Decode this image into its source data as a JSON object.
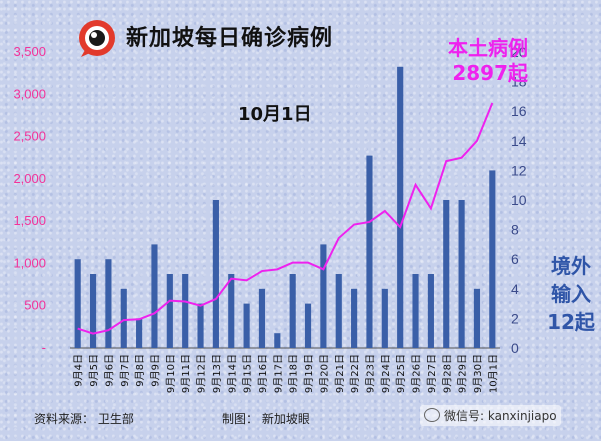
{
  "header": {
    "title": "新加坡每日确诊病例",
    "date": "10月1日"
  },
  "callouts": {
    "local_line1": "本土病例",
    "local_line2": "2897起",
    "imported_line1": "境外",
    "imported_line2": "输入",
    "imported_line3": "12起"
  },
  "footer": {
    "source": "资料来源：  卫生部",
    "credit": "制图：  新加坡眼",
    "wechat": "微信号: kanxinjiapo"
  },
  "colors": {
    "bar": "#3a5fa8",
    "line": "#ee22ee",
    "left_axis_text": "#f3339a",
    "right_axis_text": "#3a4a8a"
  },
  "chart_data": {
    "type": "bar",
    "title": "新加坡每日确诊病例",
    "categories": [
      "9月4日",
      "9月5日",
      "9月6日",
      "9月7日",
      "9月8日",
      "9月9日",
      "9月10日",
      "9月11日",
      "9月12日",
      "9月13日",
      "9月14日",
      "9月15日",
      "9月16日",
      "9月17日",
      "9月18日",
      "9月19日",
      "9月20日",
      "9月21日",
      "9月22日",
      "9月23日",
      "9月24日",
      "9月25日",
      "9月26日",
      "9月27日",
      "9月28日",
      "9月29日",
      "9月30日",
      "10月1日"
    ],
    "ylim_left": [
      0,
      3500
    ],
    "left_ticks": [
      "-",
      "500",
      "1,000",
      "1,500",
      "2,000",
      "2,500",
      "3,000",
      "3,500"
    ],
    "ylim_right": [
      0,
      20
    ],
    "right_ticks": [
      "0",
      "2",
      "4",
      "6",
      "8",
      "10",
      "12",
      "14",
      "16",
      "18",
      "20"
    ],
    "series": [
      {
        "name": "境外输入",
        "type": "bar",
        "axis": "right",
        "values": [
          6,
          5,
          6,
          4,
          2,
          7,
          5,
          5,
          3,
          10,
          5,
          3,
          4,
          1,
          5,
          3,
          7,
          5,
          4,
          13,
          4,
          19,
          5,
          5,
          10,
          10,
          4,
          12
        ]
      },
      {
        "name": "本土病例",
        "type": "line",
        "axis": "left",
        "values": [
          230,
          170,
          210,
          330,
          340,
          410,
          560,
          550,
          500,
          580,
          820,
          800,
          910,
          930,
          1010,
          1010,
          930,
          1300,
          1460,
          1490,
          1620,
          1430,
          1930,
          1650,
          2210,
          2250,
          2450,
          2897
        ]
      }
    ]
  }
}
